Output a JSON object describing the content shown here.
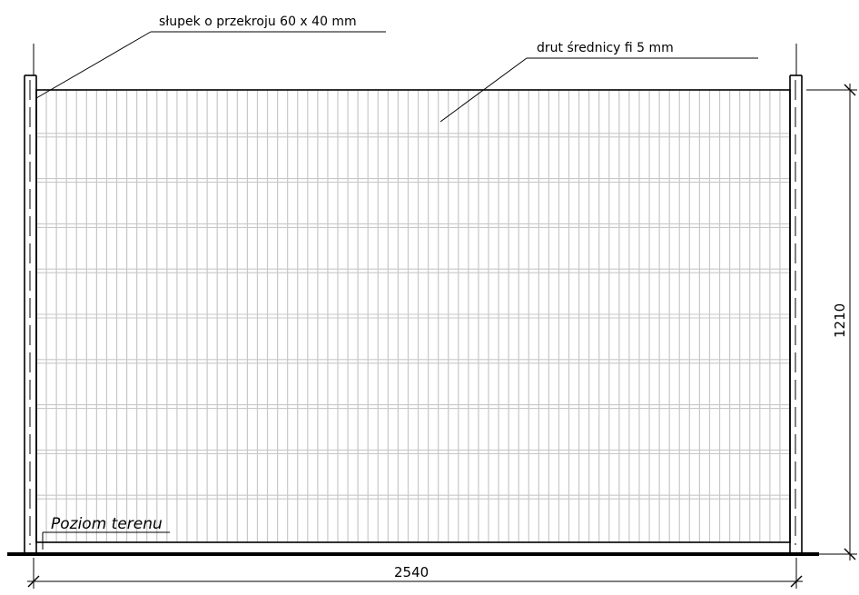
{
  "annotations": {
    "post": "słupek o przekroju 60 x 40 mm",
    "wire": "drut średnicy fi 5 mm",
    "ground": "Poziom  terenu"
  },
  "dimensions": {
    "width": "2540",
    "height": "1210"
  },
  "mesh": {
    "vertical_wires": 75,
    "horizontal_wires": 10
  },
  "colors": {
    "line": "#000000",
    "mesh": "#c8c8c8",
    "background": "#ffffff"
  }
}
